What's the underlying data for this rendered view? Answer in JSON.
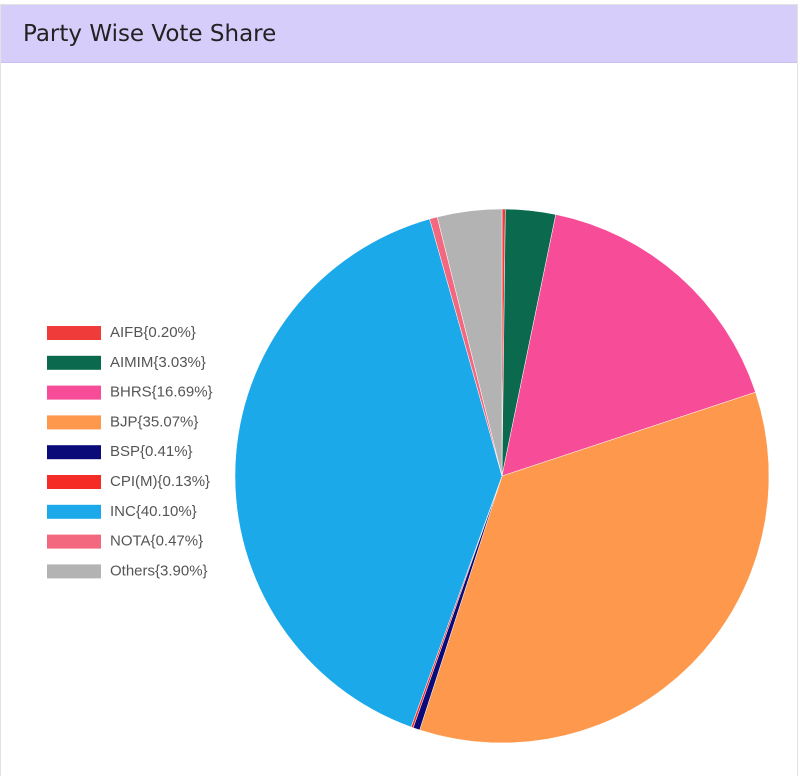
{
  "chart_data": {
    "type": "pie",
    "title": "Party Wise Vote Share",
    "categories": [
      "AIFB{0.20%}",
      "AIMIM{3.03%}",
      "BHRS{16.69%}",
      "BJP{35.07%}",
      "BSP{0.41%}",
      "CPI(M){0.13%}",
      "INC{40.10%}",
      "NOTA{0.47%}",
      "Others{3.90%}"
    ],
    "values": [
      0.2,
      3.03,
      16.69,
      35.07,
      0.41,
      0.13,
      40.1,
      0.47,
      3.9
    ],
    "colors": [
      "#f03b3b",
      "#0b6a4e",
      "#f74c97",
      "#fe984c",
      "#0a0a78",
      "#f52b25",
      "#1ba9ea",
      "#f4687f",
      "#b3b3b3"
    ],
    "legend": "left"
  }
}
